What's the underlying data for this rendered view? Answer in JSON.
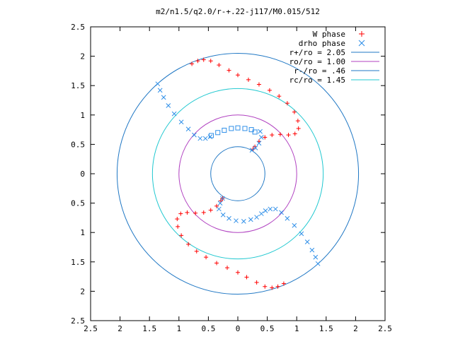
{
  "chart_data": {
    "type": "scatter",
    "title": "m2/n1.5/q2.0/r-+.22-j117/M0.015/512",
    "xlim": [
      -2.5,
      2.5
    ],
    "ylim": [
      -2.5,
      2.5
    ],
    "x_tick_labels": [
      "2.5",
      "2",
      "1.5",
      "1",
      "0.5",
      "0",
      "0.5",
      "1",
      "1.5",
      "2",
      "2.5"
    ],
    "y_tick_labels": [
      "2.5",
      "2",
      "1.5",
      "1",
      "0.5",
      "0",
      "0.5",
      "1",
      "1.5",
      "2",
      "2.5"
    ],
    "legend_position": "top-right",
    "circles": [
      {
        "name": "r+/ro = 2.05",
        "radius": 2.05,
        "color": "#1f77c4"
      },
      {
        "name": "ro/ro = 1.00",
        "radius": 1.0,
        "color": "#b040c0"
      },
      {
        "name": "r-/ro = .46",
        "radius": 0.46,
        "color": "#1f77c4"
      },
      {
        "name": "rc/ro = 1.45",
        "radius": 1.45,
        "color": "#20c8d0"
      }
    ],
    "series": [
      {
        "name": "W phase",
        "marker": "+",
        "color": "#ff0000",
        "points": [
          [
            -0.78,
            1.87
          ],
          [
            -0.68,
            1.92
          ],
          [
            -0.58,
            1.94
          ],
          [
            -0.46,
            1.92
          ],
          [
            -0.32,
            1.85
          ],
          [
            -0.15,
            1.76
          ],
          [
            0.0,
            1.68
          ],
          [
            0.18,
            1.6
          ],
          [
            0.36,
            1.52
          ],
          [
            0.54,
            1.42
          ],
          [
            0.7,
            1.32
          ],
          [
            0.84,
            1.2
          ],
          [
            0.96,
            1.05
          ],
          [
            1.02,
            0.9
          ],
          [
            1.03,
            0.77
          ],
          [
            0.97,
            0.68
          ],
          [
            0.86,
            0.66
          ],
          [
            0.72,
            0.67
          ],
          [
            0.58,
            0.66
          ],
          [
            0.46,
            0.62
          ],
          [
            0.36,
            0.55
          ],
          [
            0.29,
            0.46
          ],
          [
            0.26,
            0.42
          ],
          [
            0.78,
            -1.87
          ],
          [
            0.68,
            -1.92
          ],
          [
            0.58,
            -1.94
          ],
          [
            0.46,
            -1.92
          ],
          [
            0.32,
            -1.85
          ],
          [
            0.15,
            -1.76
          ],
          [
            0.0,
            -1.68
          ],
          [
            -0.18,
            -1.6
          ],
          [
            -0.36,
            -1.52
          ],
          [
            -0.54,
            -1.42
          ],
          [
            -0.7,
            -1.32
          ],
          [
            -0.84,
            -1.2
          ],
          [
            -0.96,
            -1.05
          ],
          [
            -1.02,
            -0.9
          ],
          [
            -1.03,
            -0.77
          ],
          [
            -0.97,
            -0.68
          ],
          [
            -0.86,
            -0.66
          ],
          [
            -0.72,
            -0.67
          ],
          [
            -0.58,
            -0.66
          ],
          [
            -0.46,
            -0.62
          ],
          [
            -0.36,
            -0.55
          ],
          [
            -0.29,
            -0.46
          ],
          [
            -0.26,
            -0.42
          ]
        ]
      },
      {
        "name": "drho phase",
        "marker": "x",
        "color": "#2f8fe8",
        "points": [
          [
            -1.36,
            1.53
          ],
          [
            -1.32,
            1.42
          ],
          [
            -1.26,
            1.3
          ],
          [
            -1.18,
            1.16
          ],
          [
            -1.08,
            1.02
          ],
          [
            -0.96,
            0.88
          ],
          [
            -0.84,
            0.76
          ],
          [
            -0.74,
            0.66
          ],
          [
            -0.64,
            0.6
          ],
          [
            -0.55,
            0.6
          ],
          [
            -0.47,
            0.63
          ],
          [
            0.38,
            0.72
          ],
          [
            0.4,
            0.62
          ],
          [
            0.36,
            0.52
          ],
          [
            0.3,
            0.44
          ],
          [
            0.24,
            0.4
          ],
          [
            1.36,
            -1.53
          ],
          [
            1.32,
            -1.42
          ],
          [
            1.26,
            -1.3
          ],
          [
            1.18,
            -1.16
          ],
          [
            1.08,
            -1.02
          ],
          [
            0.96,
            -0.88
          ],
          [
            0.84,
            -0.76
          ],
          [
            0.74,
            -0.66
          ],
          [
            0.64,
            -0.6
          ],
          [
            0.55,
            -0.6
          ],
          [
            0.47,
            -0.63
          ],
          [
            0.4,
            -0.68
          ],
          [
            0.32,
            -0.74
          ],
          [
            0.22,
            -0.78
          ],
          [
            0.1,
            -0.81
          ],
          [
            -0.03,
            -0.8
          ],
          [
            -0.15,
            -0.76
          ],
          [
            -0.25,
            -0.7
          ],
          [
            -0.32,
            -0.6
          ],
          [
            -0.3,
            -0.5
          ],
          [
            -0.26,
            -0.42
          ]
        ]
      },
      {
        "name": "",
        "marker": "square",
        "color": "#2f8fe8",
        "points": [
          [
            -0.45,
            0.65
          ],
          [
            -0.34,
            0.7
          ],
          [
            -0.23,
            0.74
          ],
          [
            -0.11,
            0.77
          ],
          [
            0.0,
            0.78
          ],
          [
            0.12,
            0.77
          ],
          [
            0.23,
            0.75
          ],
          [
            0.29,
            0.71
          ]
        ]
      }
    ]
  }
}
